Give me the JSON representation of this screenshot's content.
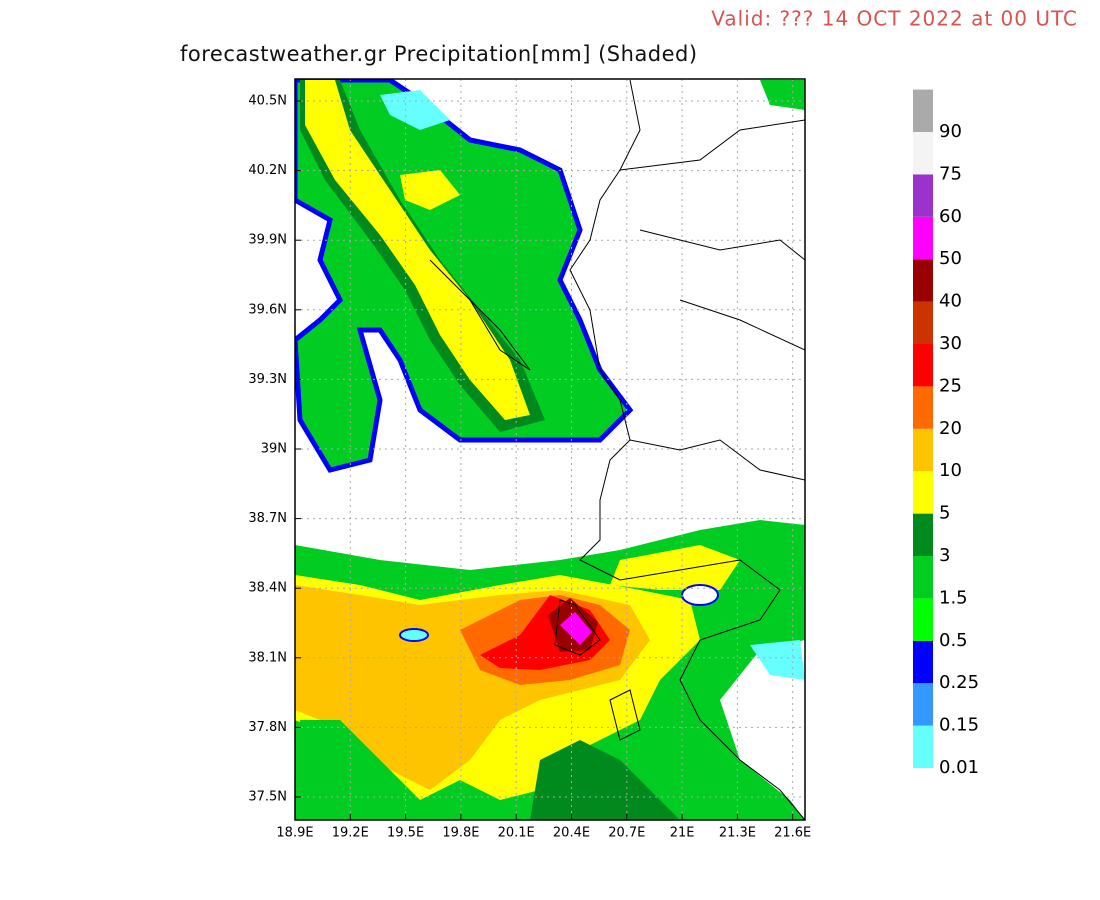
{
  "header": {
    "valid": "Valid: ??? 14 OCT 2022 at 00 UTC",
    "title": "forecastweather.gr Precipitation[mm] (Shaded)"
  },
  "axes": {
    "x_ticks": [
      "18.9E",
      "19.2E",
      "19.5E",
      "19.8E",
      "20.1E",
      "20.4E",
      "20.7E",
      "21E",
      "21.3E",
      "21.6E"
    ],
    "y_ticks": [
      "40.5N",
      "40.2N",
      "39.9N",
      "39.6N",
      "39.3N",
      "39N",
      "38.7N",
      "38.4N",
      "38.1N",
      "37.8N",
      "37.5N"
    ]
  },
  "legend": {
    "levels": [
      {
        "label": "0.01",
        "color": "#66ffff"
      },
      {
        "label": "0.15",
        "color": "#3399ff"
      },
      {
        "label": "0.25",
        "color": "#0000ff"
      },
      {
        "label": "0.5",
        "color": "#00ff00"
      },
      {
        "label": "1.5",
        "color": "#00cc22"
      },
      {
        "label": "3",
        "color": "#008a1e"
      },
      {
        "label": "5",
        "color": "#ffff00"
      },
      {
        "label": "10",
        "color": "#ffc400"
      },
      {
        "label": "20",
        "color": "#ff6a00"
      },
      {
        "label": "25",
        "color": "#ff0000"
      },
      {
        "label": "30",
        "color": "#cc3300"
      },
      {
        "label": "40",
        "color": "#990000"
      },
      {
        "label": "50",
        "color": "#ff00ff"
      },
      {
        "label": "60",
        "color": "#9933cc"
      },
      {
        "label": "75",
        "color": "#f4f4f4"
      },
      {
        "label": "90",
        "color": "#aaaaaa"
      }
    ]
  }
}
